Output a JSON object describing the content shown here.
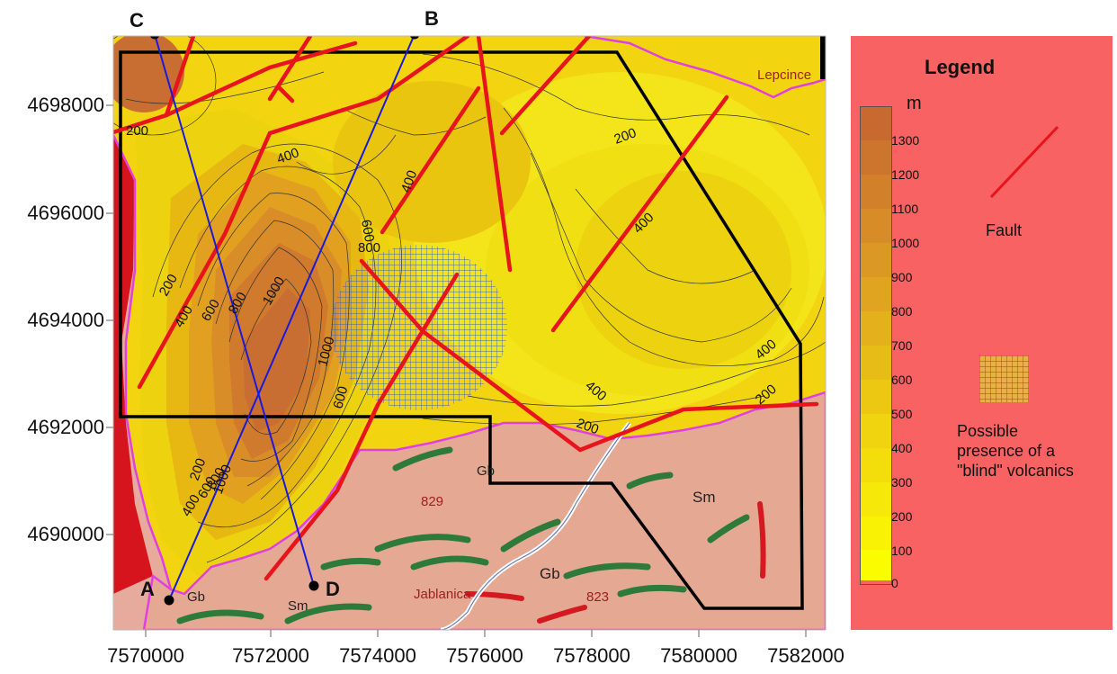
{
  "legend": {
    "title": "Legend",
    "unit": "m",
    "scale_labels": [
      "1300",
      "1200",
      "1100",
      "1000",
      "900",
      "800",
      "700",
      "600",
      "500",
      "400",
      "300",
      "200",
      "100",
      "0"
    ],
    "fault_label": "Fault",
    "volcanics_label_lines": [
      "Possible",
      "presence of a",
      "\"blind\" volcanics"
    ]
  },
  "axes": {
    "y_ticks": [
      "4698000",
      "4696000",
      "4694000",
      "4692000",
      "4690000"
    ],
    "x_ticks": [
      "7570000",
      "7572000",
      "7574000",
      "7576000",
      "7578000",
      "7580000",
      "7582000"
    ]
  },
  "profile_points": {
    "A": "A",
    "B": "B",
    "C": "C",
    "D": "D"
  },
  "contour_labels": [
    "200",
    "400",
    "600",
    "800",
    "1000",
    "200",
    "400",
    "600",
    "800",
    "1000",
    "200",
    "400",
    "600",
    "400",
    "200",
    "400",
    "200",
    "400",
    "600",
    "800",
    "200",
    "1000",
    "400"
  ],
  "map_labels": [
    "Lepcince",
    "Gb",
    "Sm",
    "Gb",
    "Gb",
    "Sm",
    "Jablanica",
    "829",
    "823"
  ],
  "colors": {
    "fault": "#e8141c",
    "profile_line": "#1a1adc",
    "boundary": "#000000",
    "geology_bg": "#e9a99a",
    "geology_edge": "#e040e0",
    "legend_bg": "#f96262"
  }
}
